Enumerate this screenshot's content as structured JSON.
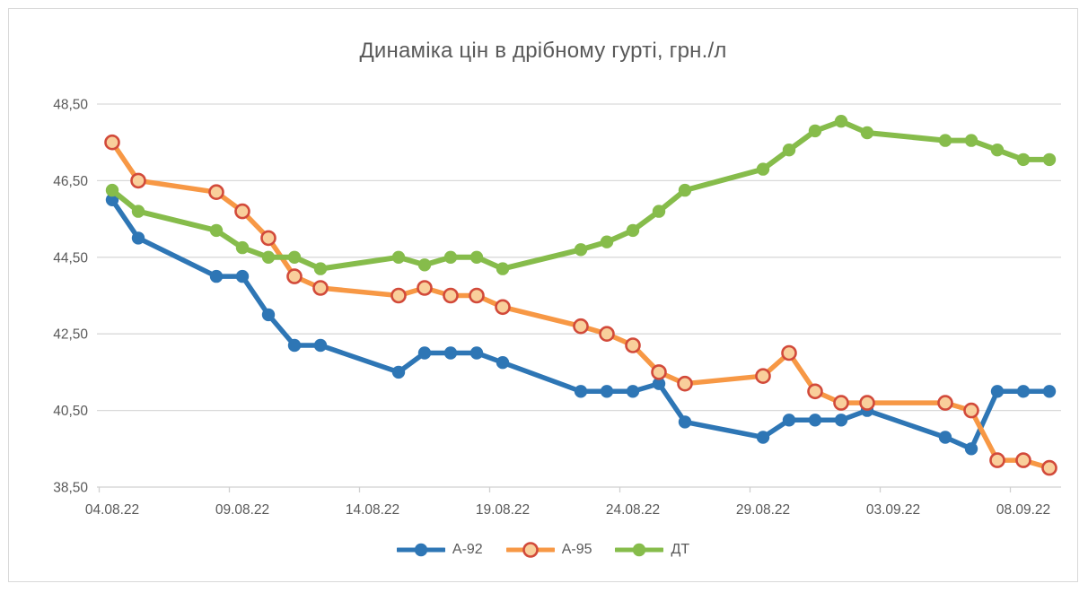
{
  "chart_data": {
    "type": "line",
    "title": "Динаміка цін в дрібному гурті, грн./л",
    "unit": "грн./л",
    "grid": true,
    "legend_position": "bottom",
    "x_axis": {
      "kind": "date",
      "first_date": "04.08.22",
      "last_date": "09.09.22",
      "tick_labels": [
        "04.08.22",
        "09.08.22",
        "14.08.22",
        "19.08.22",
        "24.08.22",
        "29.08.22",
        "03.09.22",
        "08.09.22"
      ],
      "tick_day_offsets": [
        0,
        5,
        10,
        15,
        20,
        25,
        30,
        35
      ]
    },
    "y_axis": {
      "ylim": [
        38.5,
        48.5
      ],
      "tick_values": [
        38.5,
        40.5,
        42.5,
        44.5,
        46.5,
        48.5
      ],
      "tick_labels": [
        "38,50",
        "40,50",
        "42,50",
        "44,50",
        "46,50",
        "48,50"
      ]
    },
    "dates": [
      "04.08.22",
      "05.08.22",
      "08.08.22",
      "09.08.22",
      "10.08.22",
      "11.08.22",
      "12.08.22",
      "15.08.22",
      "16.08.22",
      "17.08.22",
      "18.08.22",
      "19.08.22",
      "22.08.22",
      "23.08.22",
      "24.08.22",
      "25.08.22",
      "26.08.22",
      "29.08.22",
      "30.08.22",
      "31.08.22",
      "01.09.22",
      "02.09.22",
      "05.09.22",
      "06.09.22",
      "07.09.22",
      "08.09.22",
      "09.09.22"
    ],
    "day_offsets": [
      0,
      1,
      4,
      5,
      6,
      7,
      8,
      11,
      12,
      13,
      14,
      15,
      18,
      19,
      20,
      21,
      22,
      25,
      26,
      27,
      28,
      29,
      32,
      33,
      34,
      35,
      36
    ],
    "series": [
      {
        "name": "А-92",
        "line_color": "#2e76b5",
        "marker_fill": "#2e76b5",
        "marker_stroke": "#2e76b5",
        "values": [
          46.0,
          45.0,
          44.0,
          44.0,
          43.0,
          42.2,
          42.2,
          41.5,
          42.0,
          42.0,
          42.0,
          41.75,
          41.0,
          41.0,
          41.0,
          41.2,
          40.2,
          39.8,
          40.25,
          40.25,
          40.25,
          40.5,
          39.8,
          39.5,
          41.0,
          41.0,
          41.0
        ]
      },
      {
        "name": "А-95",
        "line_color": "#f79845",
        "marker_fill": "#f9cf9b",
        "marker_stroke": "#d24a3a",
        "values": [
          47.5,
          46.5,
          46.2,
          45.7,
          45.0,
          44.0,
          43.7,
          43.5,
          43.7,
          43.5,
          43.5,
          43.2,
          42.7,
          42.5,
          42.2,
          41.5,
          41.2,
          41.4,
          42.0,
          41.0,
          40.7,
          40.7,
          40.7,
          40.5,
          39.2,
          39.2,
          39.0
        ]
      },
      {
        "name": "ДТ",
        "line_color": "#86bc4b",
        "marker_fill": "#86bc4b",
        "marker_stroke": "#86bc4b",
        "values": [
          46.25,
          45.7,
          45.2,
          44.75,
          44.5,
          44.5,
          44.2,
          44.5,
          44.3,
          44.5,
          44.5,
          44.2,
          44.7,
          44.9,
          45.2,
          45.7,
          46.25,
          46.8,
          47.3,
          47.8,
          48.05,
          47.75,
          47.55,
          47.55,
          47.3,
          47.05,
          47.05
        ]
      }
    ],
    "colors": {
      "gridline": "#d9d9d9",
      "axis_line": "#d0d0d0",
      "axis_text": "#595959",
      "title_text": "#595959",
      "background": "#ffffff",
      "frame_border": "#d9d9d9"
    }
  }
}
